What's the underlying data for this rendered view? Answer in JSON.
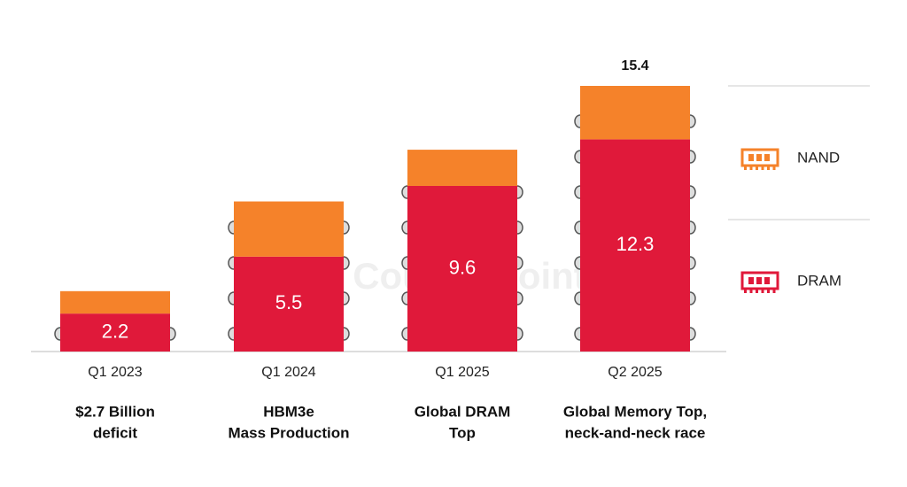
{
  "chart_data": {
    "type": "stacked-bar",
    "categories": [
      "Q1 2023",
      "Q1 2024",
      "Q1 2025",
      "Q2 2025"
    ],
    "series": [
      {
        "name": "DRAM",
        "color": "#e0193a",
        "values": [
          2.2,
          5.5,
          9.6,
          12.3
        ]
      },
      {
        "name": "NAND",
        "color": "#f5822a",
        "values": [
          1.3,
          3.2,
          2.1,
          3.1
        ]
      }
    ],
    "totals": [
      null,
      null,
      null,
      15.4
    ],
    "notes": [
      [
        "$2.7 Billion",
        "deficit"
      ],
      [
        "HBM3e",
        "Mass Production"
      ],
      [
        "Global DRAM",
        "Top"
      ],
      [
        "Global Memory Top,",
        "neck-and-neck race"
      ]
    ],
    "watermark": "Counterpoint"
  }
}
